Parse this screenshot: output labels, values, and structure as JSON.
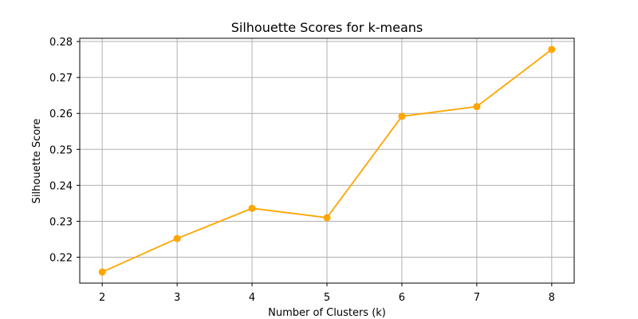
{
  "chart_data": {
    "type": "line",
    "title": "Silhouette Scores for k-means",
    "xlabel": "Number of Clusters (k)",
    "ylabel": "Silhouette Score",
    "x": [
      2,
      3,
      4,
      5,
      6,
      7,
      8
    ],
    "series": [
      {
        "values": [
          0.2159,
          0.2252,
          0.2336,
          0.231,
          0.2592,
          0.2619,
          0.2778
        ],
        "color": "#FFA500",
        "marker": "circle"
      }
    ],
    "xlim": [
      1.7,
      8.3
    ],
    "ylim": [
      0.2128,
      0.2809
    ],
    "x_ticks": [
      "2",
      "3",
      "4",
      "5",
      "6",
      "7",
      "8"
    ],
    "y_ticks": [
      "0.22",
      "0.23",
      "0.24",
      "0.25",
      "0.26",
      "0.27",
      "0.28"
    ],
    "grid": true
  }
}
